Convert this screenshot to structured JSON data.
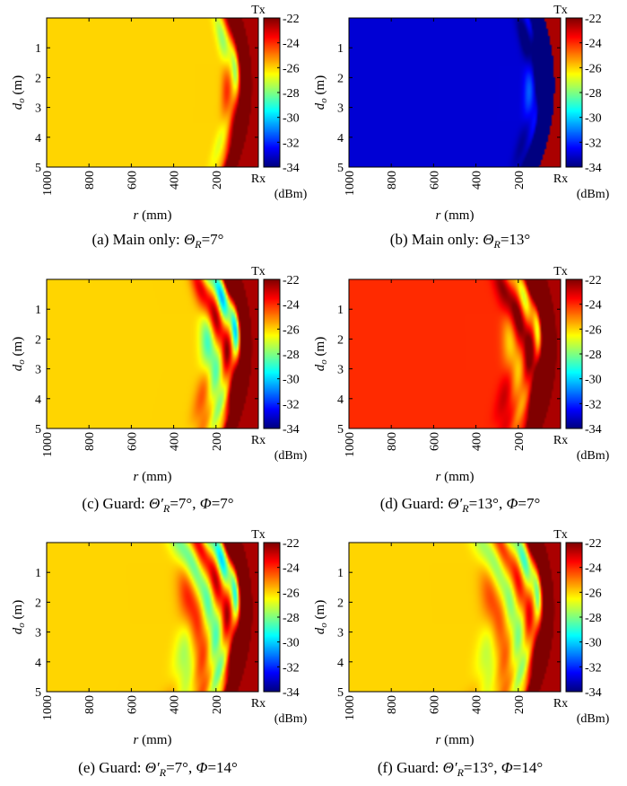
{
  "chart_data": [
    {
      "type": "heatmap",
      "caption": {
        "prefix": "(a) Main only: ",
        "theta": "Θ",
        "sub": "R",
        "rest": "=7°"
      },
      "xlabel": {
        "var": "r",
        "unit": " (mm)"
      },
      "ylabel": {
        "var": "d",
        "sub": "o",
        "unit": " (m)"
      },
      "xticks": [
        "1000",
        "800",
        "600",
        "400",
        "200"
      ],
      "xlim": [
        1000,
        0
      ],
      "yticks": [
        "1",
        "2",
        "3",
        "4",
        "5"
      ],
      "ylim": [
        0,
        5
      ],
      "corner_top": "Tx",
      "corner_bottom": "Rx",
      "colorbar": {
        "ticks": [
          "-22",
          "-24",
          "-26",
          "-28",
          "-30",
          "-32",
          "-34"
        ],
        "range": [
          -34,
          -22
        ],
        "unit": "(dBm)"
      },
      "field": {
        "background_dbm": -26,
        "arc_intensity": 0.55,
        "fringe_count": 2,
        "fringe_reach": 0.2,
        "fringe_skew": 0.0,
        "fringe_amp": 0.6
      }
    },
    {
      "type": "heatmap",
      "caption": {
        "prefix": "(b) Main only: ",
        "theta": "Θ",
        "sub": "R",
        "rest": "=13°"
      },
      "xlabel": {
        "var": "r",
        "unit": " (mm)"
      },
      "ylabel": {
        "var": "d",
        "sub": "o",
        "unit": " (m)"
      },
      "xticks": [
        "1000",
        "800",
        "600",
        "400",
        "200"
      ],
      "xlim": [
        1000,
        0
      ],
      "yticks": [
        "1",
        "2",
        "3",
        "4",
        "5"
      ],
      "ylim": [
        0,
        5
      ],
      "corner_top": "Tx",
      "corner_bottom": "Rx",
      "colorbar": {
        "ticks": [
          "-22",
          "-24",
          "-26",
          "-28",
          "-30",
          "-32",
          "-34"
        ],
        "range": [
          -34,
          -22
        ],
        "unit": "(dBm)"
      },
      "field": {
        "background_dbm": -33,
        "arc_intensity": -0.5,
        "fringe_count": 2,
        "fringe_reach": 0.22,
        "fringe_skew": 0.0,
        "fringe_amp": 0.5
      }
    },
    {
      "type": "heatmap",
      "caption": {
        "prefix": "(c) Guard: ",
        "theta": "Θ′",
        "sub": "R",
        "rest": "=7°, ",
        "phi": "Φ",
        "phi_rest": "=7°"
      },
      "xlabel": {
        "var": "r",
        "unit": " (mm)"
      },
      "ylabel": {
        "var": "d",
        "sub": "o",
        "unit": " (m)"
      },
      "xticks": [
        "1000",
        "800",
        "600",
        "400",
        "200"
      ],
      "xlim": [
        1000,
        0
      ],
      "yticks": [
        "1",
        "2",
        "3",
        "4",
        "5"
      ],
      "ylim": [
        0,
        5
      ],
      "corner_top": "Tx",
      "corner_bottom": "Rx",
      "colorbar": {
        "ticks": [
          "-22",
          "-24",
          "-26",
          "-28",
          "-30",
          "-32",
          "-34"
        ],
        "range": [
          -34,
          -22
        ],
        "unit": "(dBm)"
      },
      "field": {
        "background_dbm": -26,
        "arc_intensity": 0.55,
        "fringe_count": 4,
        "fringe_reach": 0.35,
        "fringe_skew": 0.6,
        "fringe_amp": 1.0
      }
    },
    {
      "type": "heatmap",
      "caption": {
        "prefix": "(d) Guard: ",
        "theta": "Θ′",
        "sub": "R",
        "rest": "=13°, ",
        "phi": "Φ",
        "phi_rest": "=7°"
      },
      "xlabel": {
        "var": "r",
        "unit": " (mm)"
      },
      "ylabel": {
        "var": "d",
        "sub": "o",
        "unit": " (m)"
      },
      "xticks": [
        "1000",
        "800",
        "600",
        "400",
        "200"
      ],
      "xlim": [
        1000,
        0
      ],
      "yticks": [
        "1",
        "2",
        "3",
        "4",
        "5"
      ],
      "ylim": [
        0,
        5
      ],
      "corner_top": "Tx",
      "corner_bottom": "Rx",
      "colorbar": {
        "ticks": [
          "-22",
          "-24",
          "-26",
          "-28",
          "-30",
          "-32",
          "-34"
        ],
        "range": [
          -34,
          -22
        ],
        "unit": "(dBm)"
      },
      "field": {
        "background_dbm": -24,
        "arc_intensity": 0.5,
        "fringe_count": 4,
        "fringe_reach": 0.35,
        "fringe_skew": 0.4,
        "fringe_amp": 0.7
      }
    },
    {
      "type": "heatmap",
      "caption": {
        "prefix": "(e) Guard: ",
        "theta": "Θ′",
        "sub": "R",
        "rest": "=7°, ",
        "phi": "Φ",
        "phi_rest": "=14°"
      },
      "xlabel": {
        "var": "r",
        "unit": " (mm)"
      },
      "ylabel": {
        "var": "d",
        "sub": "o",
        "unit": " (m)"
      },
      "xticks": [
        "1000",
        "800",
        "600",
        "400",
        "200"
      ],
      "xlim": [
        1000,
        0
      ],
      "yticks": [
        "1",
        "2",
        "3",
        "4",
        "5"
      ],
      "ylim": [
        0,
        5
      ],
      "corner_top": "Tx",
      "corner_bottom": "Rx",
      "colorbar": {
        "ticks": [
          "-22",
          "-24",
          "-26",
          "-28",
          "-30",
          "-32",
          "-34"
        ],
        "range": [
          -34,
          -22
        ],
        "unit": "(dBm)"
      },
      "field": {
        "background_dbm": -26,
        "arc_intensity": 0.6,
        "fringe_count": 6,
        "fringe_reach": 0.6,
        "fringe_skew": 0.8,
        "fringe_amp": 0.8
      }
    },
    {
      "type": "heatmap",
      "caption": {
        "prefix": "(f) Guard: ",
        "theta": "Θ′",
        "sub": "R",
        "rest": "=13°, ",
        "phi": "Φ",
        "phi_rest": "=14°"
      },
      "xlabel": {
        "var": "r",
        "unit": " (mm)"
      },
      "ylabel": {
        "var": "d",
        "sub": "o",
        "unit": " (m)"
      },
      "xticks": [
        "1000",
        "800",
        "600",
        "400",
        "200"
      ],
      "xlim": [
        1000,
        0
      ],
      "yticks": [
        "1",
        "2",
        "3",
        "4",
        "5"
      ],
      "ylim": [
        0,
        5
      ],
      "corner_top": "Tx",
      "corner_bottom": "Rx",
      "colorbar": {
        "ticks": [
          "-22",
          "-24",
          "-26",
          "-28",
          "-30",
          "-32",
          "-34"
        ],
        "range": [
          -34,
          -22
        ],
        "unit": "(dBm)"
      },
      "field": {
        "background_dbm": -26,
        "arc_intensity": 0.55,
        "fringe_count": 6,
        "fringe_reach": 0.55,
        "fringe_skew": 0.5,
        "fringe_amp": 0.6
      }
    }
  ]
}
